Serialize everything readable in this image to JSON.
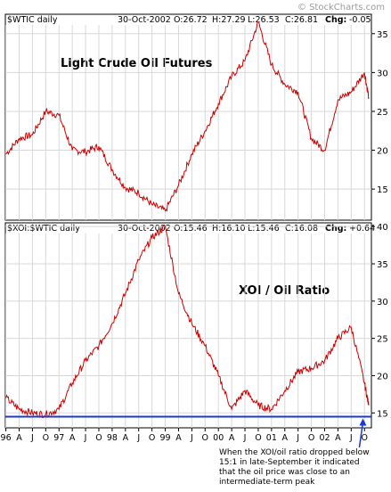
{
  "watermark": "© StockCharts.com",
  "chart_data": [
    {
      "type": "line",
      "symbol": "$WTIC daily",
      "header": {
        "date": "30-Oct-2002",
        "open": "O:26.72",
        "high": "H:27.29",
        "low": "L:26.53",
        "close": "C:26.81",
        "change_label": "Chg:",
        "change": "-0.05"
      },
      "title": "Light Crude Oil Futures",
      "ylim": [
        11,
        37.5
      ],
      "yticks": [
        15,
        20,
        25,
        30,
        35
      ],
      "line_color": "#cc0000",
      "x": [
        1996.0,
        1996.25,
        1996.5,
        1996.75,
        1997.0,
        1997.25,
        1997.5,
        1997.75,
        1998.0,
        1998.25,
        1998.5,
        1998.75,
        1999.0,
        1999.25,
        1999.5,
        1999.75,
        2000.0,
        2000.25,
        2000.5,
        2000.75,
        2001.0,
        2001.25,
        2001.5,
        2001.75,
        2002.0,
        2002.25,
        2002.5,
        2002.75,
        2002.83
      ],
      "values": [
        19.5,
        21.5,
        22.0,
        25.0,
        24.5,
        20.0,
        19.8,
        20.5,
        17.5,
        15.2,
        14.5,
        13.0,
        12.2,
        15.5,
        19.5,
        22.5,
        26.0,
        29.5,
        31.5,
        36.5,
        31.0,
        28.5,
        27.5,
        21.5,
        20.0,
        26.5,
        27.5,
        30.0,
        26.8
      ]
    },
    {
      "type": "line",
      "symbol": "$XOI:$WTIC daily",
      "header": {
        "date": "30-Oct-2002",
        "open": "O:15.46",
        "high": "H:16.10",
        "low": "L:15.46",
        "close": "C:16.08",
        "change_label": "Chg:",
        "change": "+0.64"
      },
      "title": "XOI / Oil Ratio",
      "ylim": [
        13,
        40.5
      ],
      "yticks": [
        15,
        20,
        25,
        30,
        35,
        40
      ],
      "line_color": "#cc0000",
      "reference_line": {
        "value": 14.5,
        "color": "#1a3acc"
      },
      "x": [
        1996.0,
        1996.25,
        1996.5,
        1996.75,
        1997.0,
        1997.25,
        1997.5,
        1997.75,
        1998.0,
        1998.25,
        1998.5,
        1998.75,
        1999.0,
        1999.25,
        1999.5,
        1999.75,
        2000.0,
        2000.25,
        2000.5,
        2000.75,
        2001.0,
        2001.25,
        2001.5,
        2001.75,
        2002.0,
        2002.25,
        2002.5,
        2002.75,
        2002.83
      ],
      "values": [
        17.0,
        15.5,
        15.0,
        14.8,
        15.5,
        19.0,
        22.0,
        24.0,
        27.0,
        31.0,
        35.5,
        38.5,
        40.0,
        31.0,
        27.0,
        24.0,
        20.0,
        15.5,
        18.0,
        16.0,
        15.5,
        18.0,
        20.5,
        21.0,
        22.0,
        25.0,
        26.5,
        19.0,
        16.0
      ]
    }
  ],
  "x_axis": {
    "tick_labels": [
      "96",
      "A",
      "J",
      "O",
      "97",
      "A",
      "J",
      "O",
      "98",
      "A",
      "J",
      "O",
      "99",
      "A",
      "J",
      "O",
      "00",
      "A",
      "J",
      "O",
      "01",
      "A",
      "J",
      "O",
      "02",
      "A",
      "J",
      "O"
    ],
    "tick_x": [
      1996.0,
      1996.25,
      1996.5,
      1996.75,
      1997.0,
      1997.25,
      1997.5,
      1997.75,
      1998.0,
      1998.25,
      1998.5,
      1998.75,
      1999.0,
      1999.25,
      1999.5,
      1999.75,
      2000.0,
      2000.25,
      2000.5,
      2000.75,
      2001.0,
      2001.25,
      2001.5,
      2001.75,
      2002.0,
      2002.25,
      2002.5,
      2002.75
    ],
    "range": [
      1995.99,
      2002.88
    ]
  },
  "annotation": {
    "lines": [
      "When the XOI/oil ratio dropped below",
      "15:1 in late-September it indicated",
      "that the oil price was close to an",
      "intermediate-term peak"
    ],
    "color": "#1a3acc"
  }
}
